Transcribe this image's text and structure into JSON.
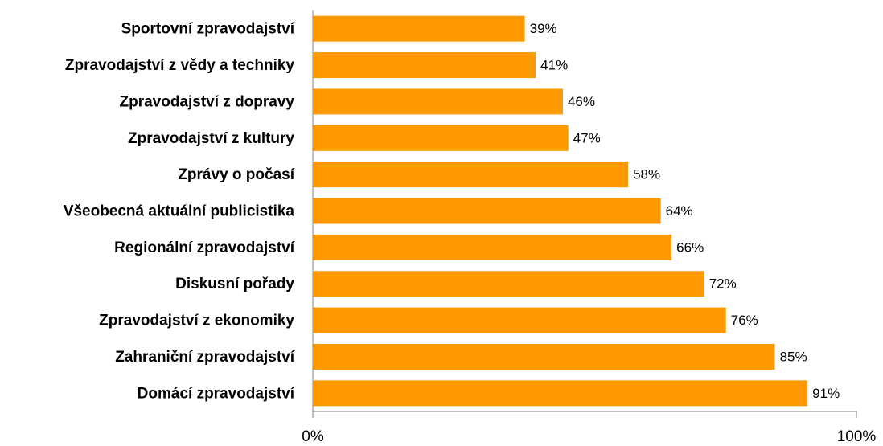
{
  "chart_data": {
    "type": "hbar",
    "categories": [
      "Sportovní zpravodajství",
      "Zpravodajství z vědy a techniky",
      "Zpravodajství z dopravy",
      "Zpravodajství z kultury",
      "Zprávy o počasí",
      "Všeobecná aktuální publicistika",
      "Regionální zpravodajství",
      "Diskusní pořady",
      "Zpravodajství z ekonomiky",
      "Zahraniční zpravodajství",
      "Domácí zpravodajství"
    ],
    "values": [
      39,
      41,
      46,
      47,
      58,
      64,
      66,
      72,
      76,
      85,
      91
    ],
    "value_labels": [
      "39%",
      "41%",
      "46%",
      "47%",
      "58%",
      "64%",
      "66%",
      "72%",
      "76%",
      "85%",
      "91%"
    ],
    "color": "#ff9900",
    "xlim": [
      0,
      100
    ],
    "xticks": [
      {
        "value": 0,
        "label": "0%"
      },
      {
        "value": 100,
        "label": "100%"
      }
    ]
  }
}
